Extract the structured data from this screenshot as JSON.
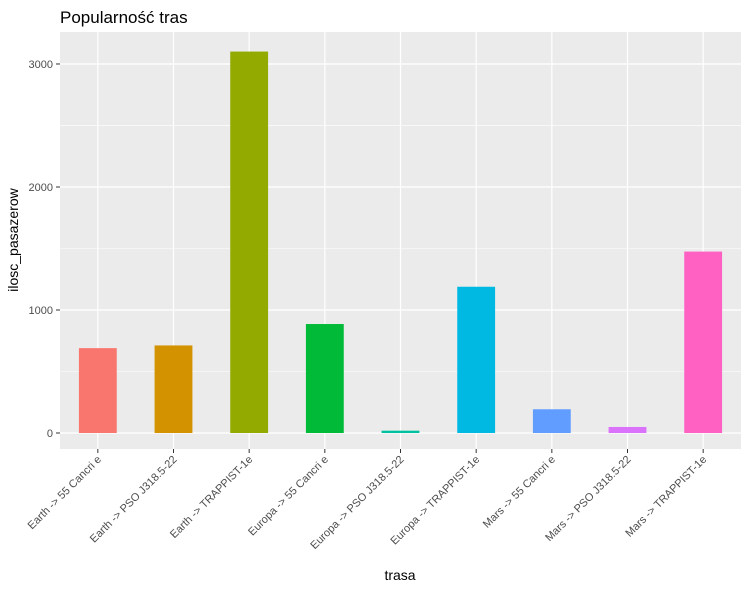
{
  "chart_data": {
    "type": "bar",
    "title": "Popularność tras",
    "xlabel": "trasa",
    "ylabel": "ilosc_pasazerow",
    "categories": [
      "Earth -> 55 Cancri e",
      "Earth -> PSO J318.5-22",
      "Earth -> TRAPPIST-1e",
      "Europa -> 55 Cancri e",
      "Europa -> PSO J318.5-22",
      "Europa -> TRAPPIST-1e",
      "Mars -> 55 Cancri e",
      "Mars -> PSO J318.5-22",
      "Mars -> TRAPPIST-1e"
    ],
    "values": [
      690,
      712,
      3101,
      886,
      19,
      1189,
      193,
      49,
      1475
    ],
    "colors": [
      "#F8766D",
      "#D39200",
      "#93AA00",
      "#00BA38",
      "#00C19F",
      "#00B9E3",
      "#619CFF",
      "#DB72FB",
      "#FF61C3"
    ],
    "yticks": [
      0,
      1000,
      2000,
      3000
    ],
    "ylim": [
      -130,
      3260
    ],
    "grid": true,
    "legend": "none",
    "panel_background": "#EBEBEB",
    "grid_color": "#FFFFFF"
  }
}
